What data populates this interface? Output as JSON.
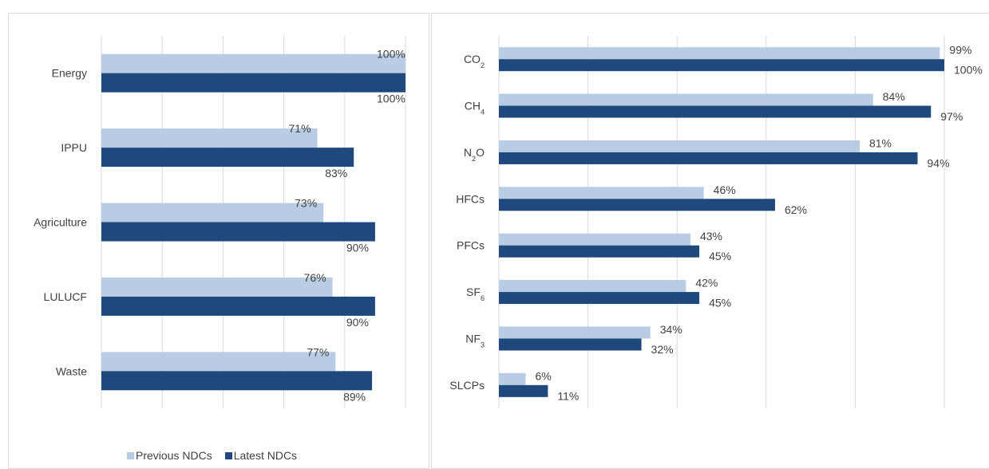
{
  "colors": {
    "previous": "#b8cce4",
    "latest": "#1f497d",
    "grid": "#d9d9d9",
    "text": "#404040"
  },
  "legend": {
    "previous": "Previous NDCs",
    "latest": "Latest NDCs"
  },
  "chart_data": [
    {
      "type": "bar",
      "orientation": "horizontal",
      "title": "",
      "xlabel": "",
      "ylabel": "",
      "xlim": [
        0,
        100
      ],
      "grid": true,
      "legend_position": "bottom-left",
      "categories": [
        "Energy",
        "IPPU",
        "Agriculture",
        "LULUCF",
        "Waste"
      ],
      "series": [
        {
          "name": "Previous NDCs",
          "values": [
            100,
            71,
            73,
            76,
            77
          ],
          "labels": [
            "100%",
            "71%",
            "73%",
            "76%",
            "77%"
          ]
        },
        {
          "name": "Latest NDCs",
          "values": [
            100,
            83,
            90,
            90,
            89
          ],
          "labels": [
            "100%",
            "83%",
            "90%",
            "90%",
            "89%"
          ]
        }
      ]
    },
    {
      "type": "bar",
      "orientation": "horizontal",
      "title": "",
      "xlabel": "",
      "ylabel": "",
      "xlim": [
        0,
        100
      ],
      "grid": true,
      "categories": [
        {
          "base": "CO",
          "sub": "2"
        },
        {
          "base": "CH",
          "sub": "4"
        },
        {
          "base": "N",
          "sub": "2",
          "tail": "O"
        },
        {
          "base": "HFCs"
        },
        {
          "base": "PFCs"
        },
        {
          "base": "SF",
          "sub": "6"
        },
        {
          "base": "NF",
          "sub": "3"
        },
        {
          "base": "SLCPs"
        }
      ],
      "series": [
        {
          "name": "Previous NDCs",
          "values": [
            99,
            84,
            81,
            46,
            43,
            42,
            34,
            6
          ],
          "labels": [
            "99%",
            "84%",
            "81%",
            "46%",
            "43%",
            "42%",
            "34%",
            "6%"
          ]
        },
        {
          "name": "Latest NDCs",
          "values": [
            100,
            97,
            94,
            62,
            45,
            45,
            32,
            11
          ],
          "labels": [
            "100%",
            "97%",
            "94%",
            "62%",
            "45%",
            "45%",
            "32%",
            "11%"
          ]
        }
      ]
    }
  ]
}
